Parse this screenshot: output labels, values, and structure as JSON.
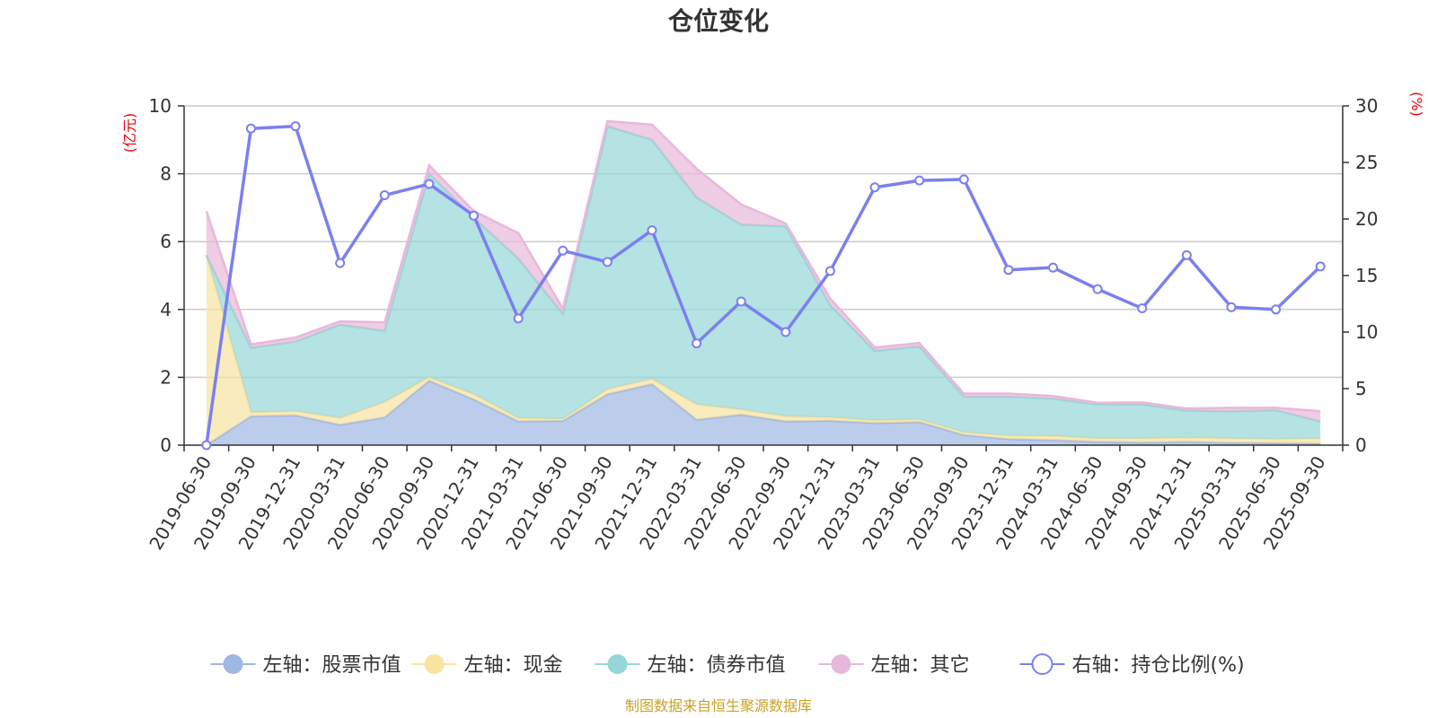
{
  "colors": {
    "stock": "#9fb7e3",
    "cash": "#f8e3a0",
    "bond": "#95d6d6",
    "other": "#e8b8da",
    "ratio": "#7b80f0",
    "unit": "#e8000b",
    "source": "#c9a227"
  },
  "chart_data": {
    "type": "area",
    "title": "仓位变化",
    "left_unit": "(亿元)",
    "right_unit": "(%)",
    "source": "制图数据来自恒生聚源数据库",
    "categories": [
      "2019-06-30",
      "2019-09-30",
      "2019-12-31",
      "2020-03-31",
      "2020-06-30",
      "2020-09-30",
      "2020-12-31",
      "2021-03-31",
      "2021-06-30",
      "2021-09-30",
      "2021-12-31",
      "2022-03-31",
      "2022-06-30",
      "2022-09-30",
      "2022-12-31",
      "2023-03-31",
      "2023-06-30",
      "2023-09-30",
      "2023-12-31",
      "2024-03-31",
      "2024-06-30",
      "2024-09-30",
      "2024-12-31",
      "2025-03-31",
      "2025-06-30",
      "2025-09-30"
    ],
    "left_axis": {
      "min": 0,
      "max": 10,
      "ticks": [
        "0",
        "2",
        "4",
        "6",
        "8",
        "10"
      ]
    },
    "right_axis": {
      "min": 0,
      "max": 30,
      "ticks": [
        "0",
        "5",
        "10",
        "15",
        "20",
        "25",
        "30"
      ]
    },
    "grid": true,
    "legend_position": "bottom",
    "series": [
      {
        "key": "stock",
        "name": "左轴：股票市值",
        "axis": "left",
        "stacked": true,
        "values": [
          0,
          0.85,
          0.88,
          0.6,
          0.82,
          1.9,
          1.35,
          0.7,
          0.72,
          1.5,
          1.8,
          0.75,
          0.9,
          0.7,
          0.72,
          0.65,
          0.68,
          0.3,
          0.18,
          0.15,
          0.1,
          0.08,
          0.1,
          0.07,
          0.06,
          0.05
        ]
      },
      {
        "key": "cash",
        "name": "左轴：现金",
        "axis": "left",
        "stacked": true,
        "values": [
          5.6,
          0.12,
          0.12,
          0.2,
          0.45,
          0.1,
          0.15,
          0.1,
          0.05,
          0.15,
          0.15,
          0.45,
          0.15,
          0.15,
          0.1,
          0.08,
          0.08,
          0.08,
          0.1,
          0.12,
          0.1,
          0.12,
          0.12,
          0.13,
          0.12,
          0.15
        ]
      },
      {
        "key": "bond",
        "name": "左轴：债券市值",
        "axis": "left",
        "stacked": true,
        "values": [
          0,
          1.9,
          2.05,
          2.75,
          2.1,
          6.0,
          5.2,
          4.7,
          3.1,
          7.75,
          7.05,
          6.1,
          5.45,
          5.6,
          3.3,
          2.05,
          2.15,
          1.05,
          1.15,
          1.1,
          1.0,
          1.0,
          0.8,
          0.8,
          0.85,
          0.5
        ]
      },
      {
        "key": "other",
        "name": "左轴：其它",
        "axis": "left",
        "stacked": true,
        "values": [
          1.3,
          0.1,
          0.12,
          0.1,
          0.25,
          0.25,
          0.2,
          0.75,
          0.15,
          0.15,
          0.45,
          0.85,
          0.6,
          0.08,
          0.2,
          0.1,
          0.1,
          0.09,
          0.09,
          0.08,
          0.05,
          0.06,
          0.06,
          0.1,
          0.07,
          0.3
        ]
      },
      {
        "key": "ratio",
        "name": "右轴：持仓比例(%)",
        "axis": "right",
        "stacked": false,
        "values": [
          0,
          28.0,
          28.2,
          16.1,
          22.1,
          23.1,
          20.3,
          11.2,
          17.2,
          16.2,
          19.0,
          9.0,
          12.7,
          10.0,
          15.4,
          22.8,
          23.4,
          23.5,
          15.5,
          15.7,
          13.8,
          12.1,
          16.8,
          12.2,
          12.0,
          15.8
        ]
      }
    ]
  }
}
